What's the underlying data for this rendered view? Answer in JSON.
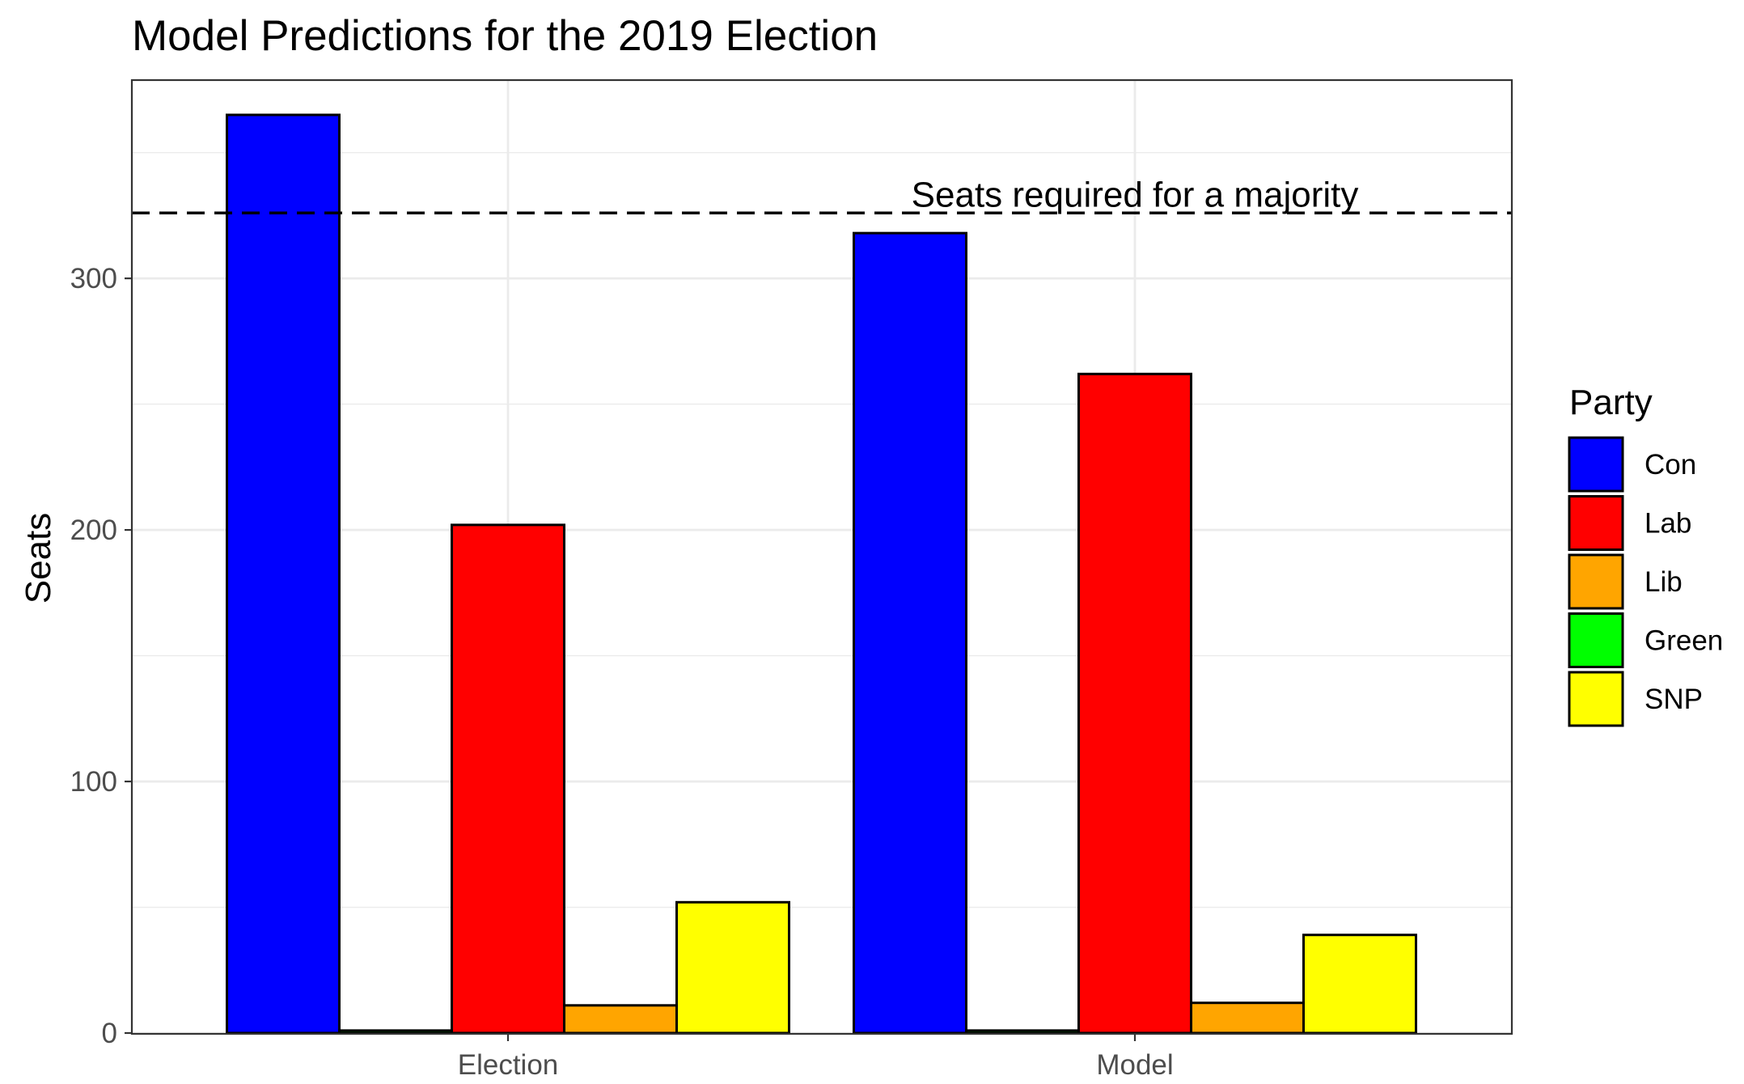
{
  "chart_data": {
    "type": "bar",
    "title": "Model Predictions for the 2019 Election",
    "xlabel": "",
    "ylabel": "Seats",
    "categories": [
      "Election",
      "Model"
    ],
    "ylim": [
      0,
      365
    ],
    "yticks": [
      0,
      100,
      200,
      300
    ],
    "grid": true,
    "legend": {
      "title": "Party",
      "position": "right"
    },
    "series": [
      {
        "name": "Con",
        "color": "#0000FF",
        "values": [
          365,
          318
        ]
      },
      {
        "name": "Lab",
        "color": "#FF0000",
        "values": [
          202,
          262
        ]
      },
      {
        "name": "Lib",
        "color": "#FFA500",
        "values": [
          11,
          12
        ]
      },
      {
        "name": "Green",
        "color": "#00FF00",
        "values": [
          1,
          1
        ]
      },
      {
        "name": "SNP",
        "color": "#FFFF00",
        "values": [
          52,
          39
        ]
      }
    ],
    "bar_order": [
      "Con",
      "Green",
      "Lab",
      "Lib",
      "SNP"
    ],
    "hline": {
      "y": 326,
      "style": "dashed",
      "label": "Seats required for a majority"
    }
  }
}
